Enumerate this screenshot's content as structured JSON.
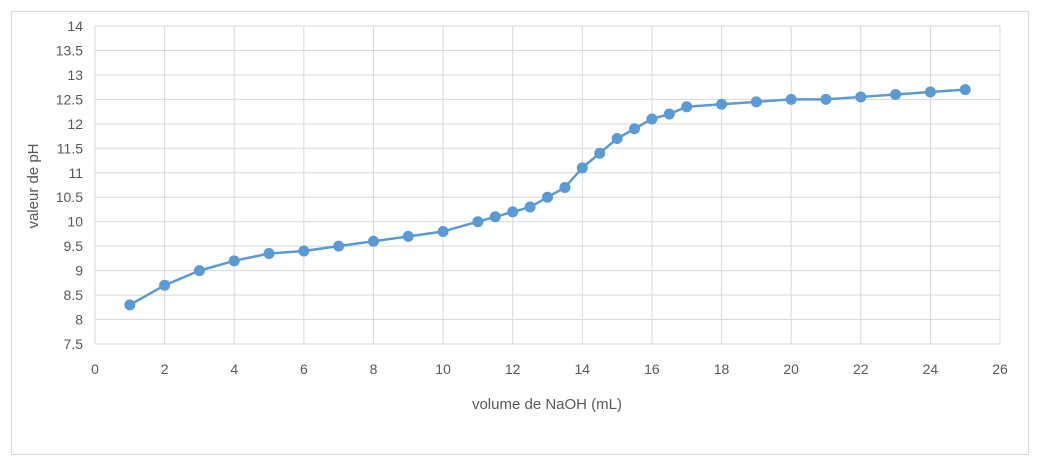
{
  "chart_data": {
    "type": "scatter",
    "title": "",
    "xlabel": "volume de NaOH (mL)",
    "ylabel": "valeur de pH",
    "xlim": [
      0,
      26
    ],
    "ylim": [
      7.5,
      14
    ],
    "x_ticks": [
      0,
      2,
      4,
      6,
      8,
      10,
      12,
      14,
      16,
      18,
      20,
      22,
      24,
      26
    ],
    "y_ticks": [
      "7.5",
      "8",
      "8.5",
      "9",
      "9.5",
      "10",
      "10.5",
      "11",
      "11.5",
      "12",
      "12.5",
      "13",
      "13.5",
      "14"
    ],
    "grid": true,
    "legend": "none",
    "series": [
      {
        "color": "#5b9bd5",
        "points": [
          [
            1,
            8.3
          ],
          [
            2,
            8.7
          ],
          [
            3,
            9.0
          ],
          [
            4,
            9.2
          ],
          [
            5,
            9.35
          ],
          [
            6,
            9.4
          ],
          [
            7,
            9.5
          ],
          [
            8,
            9.6
          ],
          [
            9,
            9.7
          ],
          [
            10,
            9.8
          ],
          [
            11,
            10.0
          ],
          [
            11.5,
            10.1
          ],
          [
            12,
            10.2
          ],
          [
            12.5,
            10.3
          ],
          [
            13,
            10.5
          ],
          [
            13.5,
            10.7
          ],
          [
            14,
            11.1
          ],
          [
            14.5,
            11.4
          ],
          [
            15,
            11.7
          ],
          [
            15.5,
            11.9
          ],
          [
            16,
            12.1
          ],
          [
            16.5,
            12.2
          ],
          [
            17,
            12.35
          ],
          [
            18,
            12.4
          ],
          [
            19,
            12.45
          ],
          [
            20,
            12.5
          ],
          [
            21,
            12.5
          ],
          [
            22,
            12.55
          ],
          [
            23,
            12.6
          ],
          [
            24,
            12.65
          ],
          [
            25,
            12.7
          ]
        ]
      }
    ],
    "colors": {
      "gridline": "#d9d9d9",
      "tick_text": "#595959",
      "frame_border": "#d9d9d9"
    }
  }
}
